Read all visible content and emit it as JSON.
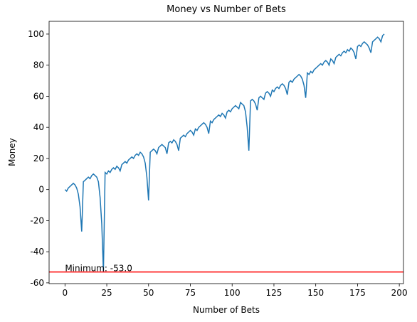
{
  "chart_data": {
    "type": "line",
    "title": "Money vs Number of Bets",
    "xlabel": "Number of Bets",
    "ylabel": "Money",
    "x": [
      0,
      1,
      2,
      3,
      4,
      5,
      6,
      7,
      8,
      9,
      10,
      11,
      12,
      13,
      14,
      15,
      16,
      17,
      18,
      19,
      20,
      21,
      22,
      23,
      24,
      25,
      26,
      27,
      28,
      29,
      30,
      31,
      32,
      33,
      34,
      35,
      36,
      37,
      38,
      39,
      40,
      41,
      42,
      43,
      44,
      45,
      46,
      47,
      48,
      49,
      50,
      51,
      52,
      53,
      54,
      55,
      56,
      57,
      58,
      59,
      60,
      61,
      62,
      63,
      64,
      65,
      66,
      67,
      68,
      69,
      70,
      71,
      72,
      73,
      74,
      75,
      76,
      77,
      78,
      79,
      80,
      81,
      82,
      83,
      84,
      85,
      86,
      87,
      88,
      89,
      90,
      91,
      92,
      93,
      94,
      95,
      96,
      97,
      98,
      99,
      100,
      101,
      102,
      103,
      104,
      105,
      106,
      107,
      108,
      109,
      110,
      111,
      112,
      113,
      114,
      115,
      116,
      117,
      118,
      119,
      120,
      121,
      122,
      123,
      124,
      125,
      126,
      127,
      128,
      129,
      130,
      131,
      132,
      133,
      134,
      135,
      136,
      137,
      138,
      139,
      140,
      141,
      142,
      143,
      144,
      145,
      146,
      147,
      148,
      149,
      150,
      151,
      152,
      153,
      154,
      155,
      156,
      157,
      158,
      159,
      160,
      161,
      162,
      163,
      164,
      165,
      166,
      167,
      168,
      169,
      170,
      171,
      172,
      173,
      174,
      175,
      176,
      177,
      178,
      179,
      180,
      181,
      182,
      183,
      184,
      185,
      186,
      187,
      188,
      189,
      190,
      191
    ],
    "series": [
      {
        "name": "Money",
        "color": "#1f77b4",
        "values": [
          0,
          -1,
          1,
          2,
          3,
          4,
          3,
          1,
          -3,
          -11,
          -27,
          5,
          6,
          7,
          8,
          7,
          9,
          10,
          9,
          8,
          5,
          -5,
          -22,
          -53,
          11,
          10,
          12,
          11,
          13,
          14,
          13,
          15,
          14,
          12,
          16,
          17,
          18,
          17,
          19,
          20,
          21,
          20,
          22,
          23,
          22,
          24,
          23,
          21,
          17,
          8,
          -7,
          24,
          25,
          26,
          25,
          23,
          27,
          28,
          29,
          28,
          27,
          23,
          30,
          31,
          30,
          32,
          31,
          29,
          25,
          33,
          34,
          35,
          34,
          36,
          37,
          38,
          37,
          35,
          39,
          38,
          40,
          41,
          42,
          43,
          42,
          40,
          36,
          44,
          43,
          45,
          46,
          47,
          48,
          47,
          49,
          48,
          46,
          50,
          51,
          50,
          52,
          53,
          54,
          53,
          52,
          56,
          55,
          54,
          50,
          40,
          25,
          57,
          58,
          57,
          55,
          51,
          59,
          60,
          59,
          58,
          62,
          63,
          62,
          60,
          64,
          63,
          65,
          66,
          65,
          67,
          68,
          67,
          65,
          61,
          69,
          70,
          69,
          71,
          72,
          73,
          74,
          73,
          71,
          67,
          59,
          75,
          74,
          76,
          75,
          77,
          78,
          79,
          80,
          81,
          80,
          82,
          83,
          82,
          80,
          84,
          83,
          81,
          85,
          86,
          87,
          86,
          88,
          89,
          88,
          90,
          89,
          91,
          90,
          88,
          84,
          92,
          93,
          92,
          94,
          95,
          94,
          93,
          91,
          88,
          95,
          96,
          97,
          98,
          97,
          95,
          99,
          100
        ]
      }
    ],
    "hline": {
      "value": -53,
      "color": "#ff0000"
    },
    "annotation": "Minimum: -53.0",
    "xlim": [
      -9.5,
      202.5
    ],
    "ylim": [
      -60.5,
      108.2
    ],
    "xticks": [
      0,
      25,
      50,
      75,
      100,
      125,
      150,
      175,
      200
    ],
    "yticks": [
      -60,
      -40,
      -20,
      0,
      20,
      40,
      60,
      80,
      100
    ],
    "grid": false
  }
}
